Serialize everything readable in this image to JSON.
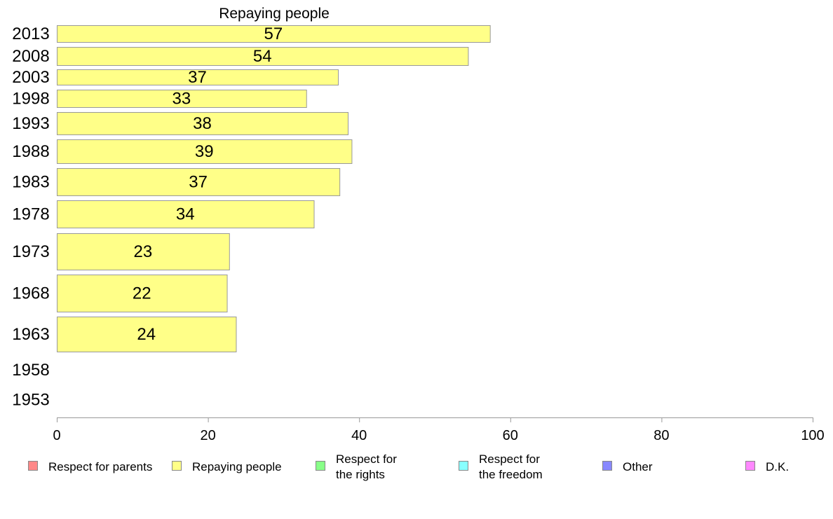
{
  "chart_data": {
    "type": "bar",
    "orientation": "horizontal",
    "title": "Repaying people",
    "categories": [
      "2013",
      "2008",
      "2003",
      "1998",
      "1993",
      "1988",
      "1983",
      "1978",
      "1973",
      "1968",
      "1963",
      "1958",
      "1953"
    ],
    "series": [
      {
        "name": "Repaying people",
        "values": [
          57.3,
          54.4,
          37.2,
          33.0,
          38.5,
          39.0,
          37.4,
          34.0,
          22.8,
          22.5,
          23.7,
          null,
          null
        ],
        "labels": [
          "57",
          "54",
          "37",
          "33",
          "38",
          "39",
          "37",
          "34",
          "23",
          "22",
          "24",
          "",
          ""
        ],
        "color": "#ffff88"
      }
    ],
    "xlim": [
      0,
      100
    ],
    "xticks": [
      "0",
      "20",
      "40",
      "60",
      "80",
      "100"
    ],
    "grid": false,
    "legend_position": "bottom",
    "legend": [
      {
        "label": "Respect for parents",
        "color": "#ff8888"
      },
      {
        "label": "Repaying people",
        "color": "#ffff88"
      },
      {
        "label": "Respect for the rights",
        "lines": [
          "Respect for",
          "the rights"
        ],
        "color": "#88ff88"
      },
      {
        "label": "Respect for the freedom",
        "lines": [
          "Respect for",
          "the freedom"
        ],
        "color": "#88ffff"
      },
      {
        "label": "Other",
        "color": "#8888ff"
      },
      {
        "label": "D.K.",
        "color": "#ff88ff"
      }
    ]
  }
}
